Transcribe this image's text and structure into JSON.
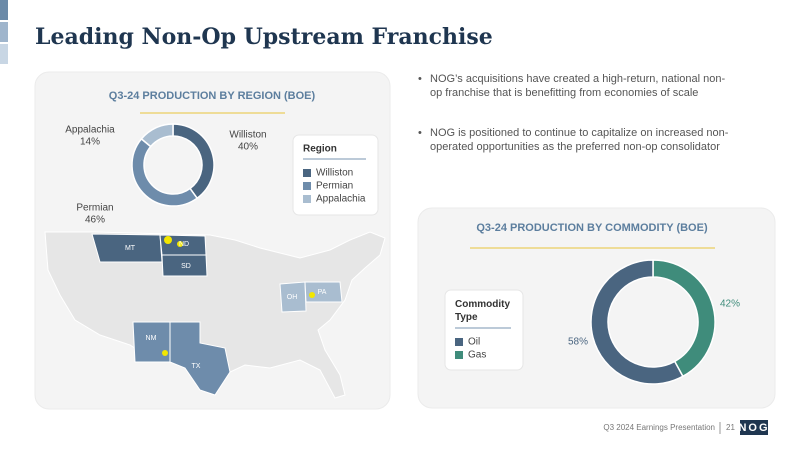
{
  "slide": {
    "title": "Leading Non-Op Upstream Franchise",
    "bullets": [
      "NOG’s acquisitions have created a high-return, national non-op franchise that is benefitting from economies of scale",
      "NOG is positioned to continue to capitalize on increased non-operated opportunities as the preferred non-op consolidator"
    ],
    "footer": "Q3 2024 Earnings Presentation",
    "page": "21",
    "logo": "NOG"
  },
  "map": {
    "labels": [
      "MT",
      "ND",
      "SD",
      "NM",
      "TX",
      "OH",
      "PA"
    ]
  },
  "chart_data": [
    {
      "type": "donut",
      "title": "Q3-24 PRODUCTION BY REGION (BOE)",
      "legend_title": "Region",
      "categories": [
        "Williston",
        "Permian",
        "Appalachia"
      ],
      "values": [
        40,
        46,
        14
      ],
      "value_labels": [
        "40%",
        "46%",
        "14%"
      ],
      "colors": [
        "#4a6580",
        "#6e8cab",
        "#a9bdd0"
      ]
    },
    {
      "type": "donut",
      "title": "Q3-24 PRODUCTION BY COMMODITY (BOE)",
      "legend_title": "Commodity Type",
      "categories": [
        "Oil",
        "Gas"
      ],
      "values": [
        58,
        42
      ],
      "value_labels": [
        "58%",
        "42%"
      ],
      "colors": [
        "#4a6580",
        "#3f8c7b"
      ]
    }
  ]
}
